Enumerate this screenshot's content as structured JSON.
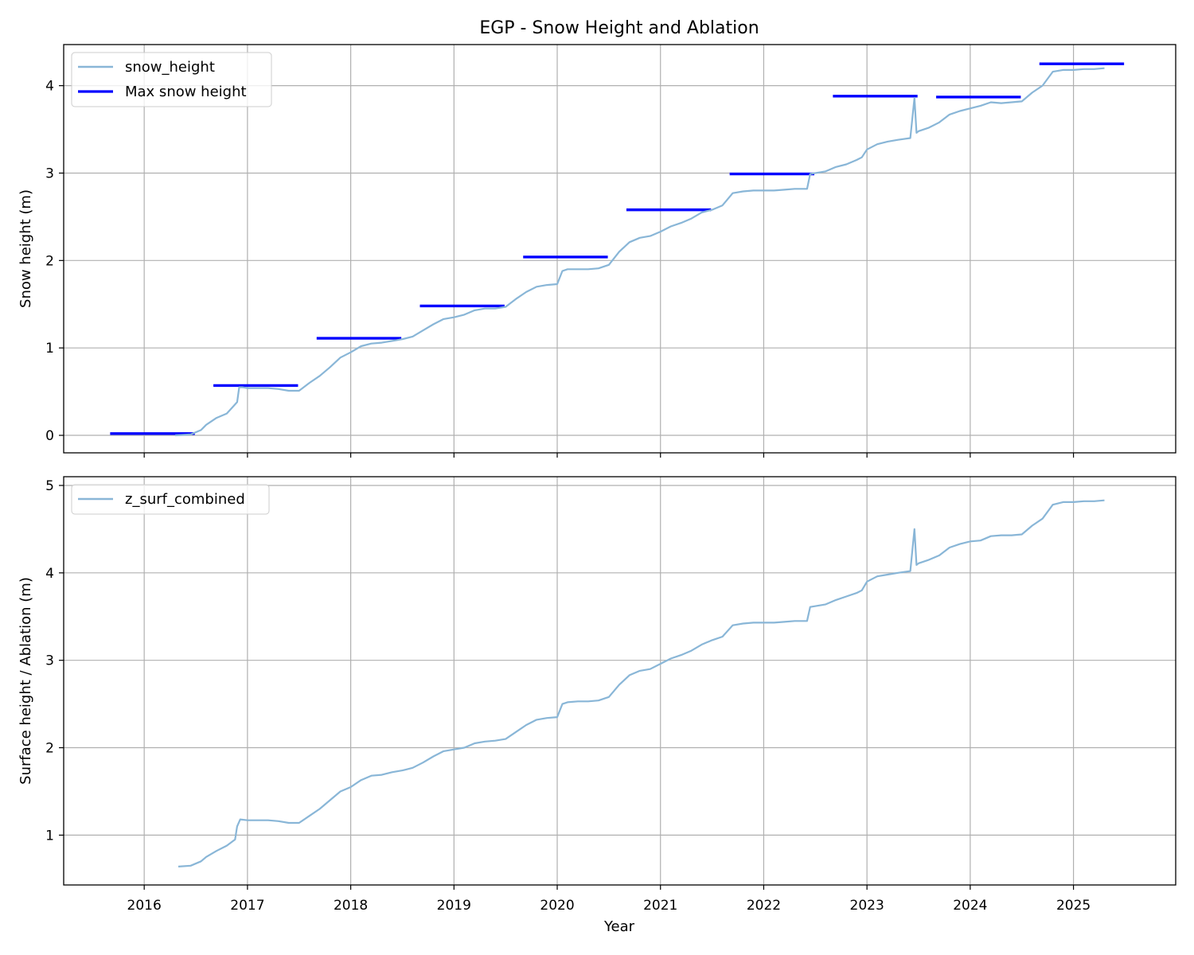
{
  "colors": {
    "series_line": "#89b6d7",
    "max_line": "#0000ff",
    "grid": "#b0b0b0",
    "frame": "#000000"
  },
  "chart_data": [
    {
      "type": "line",
      "title": "EGP - Snow Height and Ablation",
      "xlabel": "",
      "ylabel": "Snow height (m)",
      "xlim": [
        2015.22,
        2025.99
      ],
      "ylim": [
        -0.2,
        4.47
      ],
      "xticks": [
        "2016",
        "2017",
        "2018",
        "2019",
        "2020",
        "2021",
        "2022",
        "2023",
        "2024",
        "2025"
      ],
      "yticks": [
        0,
        1,
        2,
        3,
        4
      ],
      "grid": true,
      "legend_position": "top-left",
      "legend": [
        "snow_height",
        "Max snow height"
      ],
      "series": [
        {
          "name": "snow_height",
          "style": "line",
          "x": [
            2016.3,
            2016.45,
            2016.55,
            2016.6,
            2016.7,
            2016.8,
            2016.9,
            2016.92,
            2016.95,
            2017.0,
            2017.1,
            2017.2,
            2017.3,
            2017.4,
            2017.5,
            2017.6,
            2017.7,
            2017.8,
            2017.9,
            2018.0,
            2018.1,
            2018.2,
            2018.3,
            2018.4,
            2018.5,
            2018.6,
            2018.7,
            2018.8,
            2018.9,
            2019.0,
            2019.1,
            2019.2,
            2019.3,
            2019.4,
            2019.5,
            2019.6,
            2019.7,
            2019.8,
            2019.9,
            2020.0,
            2020.05,
            2020.1,
            2020.2,
            2020.3,
            2020.4,
            2020.5,
            2020.6,
            2020.7,
            2020.8,
            2020.9,
            2021.0,
            2021.1,
            2021.2,
            2021.3,
            2021.4,
            2021.5,
            2021.6,
            2021.7,
            2021.8,
            2021.9,
            2022.0,
            2022.1,
            2022.2,
            2022.3,
            2022.42,
            2022.45,
            2022.6,
            2022.7,
            2022.8,
            2022.9,
            2022.95,
            2023.0,
            2023.1,
            2023.2,
            2023.3,
            2023.42,
            2023.46,
            2023.48,
            2023.5,
            2023.6,
            2023.7,
            2023.8,
            2023.9,
            2024.0,
            2024.1,
            2024.2,
            2024.3,
            2024.4,
            2024.5,
            2024.6,
            2024.7,
            2024.8,
            2024.9,
            2025.0,
            2025.1,
            2025.2,
            2025.3
          ],
          "y": [
            0.0,
            0.01,
            0.06,
            0.12,
            0.2,
            0.25,
            0.38,
            0.55,
            0.55,
            0.54,
            0.54,
            0.54,
            0.53,
            0.51,
            0.51,
            0.6,
            0.68,
            0.78,
            0.89,
            0.95,
            1.02,
            1.05,
            1.06,
            1.08,
            1.1,
            1.13,
            1.2,
            1.27,
            1.33,
            1.35,
            1.38,
            1.43,
            1.45,
            1.45,
            1.47,
            1.56,
            1.64,
            1.7,
            1.72,
            1.73,
            1.88,
            1.9,
            1.9,
            1.9,
            1.91,
            1.95,
            2.1,
            2.21,
            2.26,
            2.28,
            2.33,
            2.39,
            2.43,
            2.48,
            2.55,
            2.58,
            2.63,
            2.77,
            2.79,
            2.8,
            2.8,
            2.8,
            2.81,
            2.82,
            2.82,
            2.99,
            3.02,
            3.07,
            3.1,
            3.15,
            3.18,
            3.27,
            3.33,
            3.36,
            3.38,
            3.4,
            3.86,
            3.46,
            3.48,
            3.52,
            3.58,
            3.67,
            3.71,
            3.74,
            3.77,
            3.81,
            3.8,
            3.81,
            3.82,
            3.92,
            4.0,
            4.16,
            4.18,
            4.18,
            4.19,
            4.19,
            4.2
          ]
        },
        {
          "name": "Max snow height",
          "style": "hsegments",
          "segments": [
            {
              "x0": 2015.67,
              "x1": 2016.49,
              "y": 0.02
            },
            {
              "x0": 2016.67,
              "x1": 2017.49,
              "y": 0.57
            },
            {
              "x0": 2017.67,
              "x1": 2018.49,
              "y": 1.11
            },
            {
              "x0": 2018.67,
              "x1": 2019.49,
              "y": 1.48
            },
            {
              "x0": 2019.67,
              "x1": 2020.49,
              "y": 2.04
            },
            {
              "x0": 2020.67,
              "x1": 2021.49,
              "y": 2.58
            },
            {
              "x0": 2021.67,
              "x1": 2022.49,
              "y": 2.99
            },
            {
              "x0": 2022.67,
              "x1": 2023.49,
              "y": 3.88
            },
            {
              "x0": 2023.67,
              "x1": 2024.49,
              "y": 3.87
            },
            {
              "x0": 2024.67,
              "x1": 2025.49,
              "y": 4.25
            }
          ]
        }
      ]
    },
    {
      "type": "line",
      "title": "",
      "xlabel": "Year",
      "ylabel": "Surface height / Ablation (m)",
      "xlim": [
        2015.22,
        2025.99
      ],
      "ylim": [
        0.43,
        5.1
      ],
      "xticks": [
        "2016",
        "2017",
        "2018",
        "2019",
        "2020",
        "2021",
        "2022",
        "2023",
        "2024",
        "2025"
      ],
      "yticks": [
        1,
        2,
        3,
        4,
        5
      ],
      "grid": true,
      "legend_position": "top-left",
      "legend": [
        "z_surf_combined"
      ],
      "series": [
        {
          "name": "z_surf_combined",
          "style": "line",
          "x": [
            2016.33,
            2016.45,
            2016.55,
            2016.6,
            2016.7,
            2016.8,
            2016.88,
            2016.9,
            2016.93,
            2017.0,
            2017.1,
            2017.2,
            2017.3,
            2017.4,
            2017.5,
            2017.6,
            2017.7,
            2017.8,
            2017.9,
            2018.0,
            2018.1,
            2018.2,
            2018.3,
            2018.4,
            2018.5,
            2018.6,
            2018.7,
            2018.8,
            2018.9,
            2019.0,
            2019.1,
            2019.2,
            2019.3,
            2019.4,
            2019.5,
            2019.6,
            2019.7,
            2019.8,
            2019.9,
            2020.0,
            2020.05,
            2020.1,
            2020.2,
            2020.3,
            2020.4,
            2020.5,
            2020.6,
            2020.7,
            2020.8,
            2020.9,
            2021.0,
            2021.1,
            2021.2,
            2021.3,
            2021.4,
            2021.5,
            2021.6,
            2021.7,
            2021.8,
            2021.9,
            2022.0,
            2022.1,
            2022.2,
            2022.3,
            2022.42,
            2022.45,
            2022.6,
            2022.7,
            2022.8,
            2022.9,
            2022.95,
            2023.0,
            2023.1,
            2023.2,
            2023.3,
            2023.42,
            2023.46,
            2023.48,
            2023.5,
            2023.6,
            2023.7,
            2023.8,
            2023.9,
            2024.0,
            2024.1,
            2024.2,
            2024.3,
            2024.4,
            2024.5,
            2024.6,
            2024.7,
            2024.8,
            2024.9,
            2025.0,
            2025.1,
            2025.2,
            2025.3
          ],
          "y": [
            0.64,
            0.65,
            0.7,
            0.75,
            0.82,
            0.88,
            0.95,
            1.1,
            1.18,
            1.17,
            1.17,
            1.17,
            1.16,
            1.14,
            1.14,
            1.22,
            1.3,
            1.4,
            1.5,
            1.55,
            1.63,
            1.68,
            1.69,
            1.72,
            1.74,
            1.77,
            1.83,
            1.9,
            1.96,
            1.98,
            2.0,
            2.05,
            2.07,
            2.08,
            2.1,
            2.18,
            2.26,
            2.32,
            2.34,
            2.35,
            2.5,
            2.52,
            2.53,
            2.53,
            2.54,
            2.58,
            2.72,
            2.83,
            2.88,
            2.9,
            2.96,
            3.02,
            3.06,
            3.11,
            3.18,
            3.23,
            3.27,
            3.4,
            3.42,
            3.43,
            3.43,
            3.43,
            3.44,
            3.45,
            3.45,
            3.61,
            3.64,
            3.69,
            3.73,
            3.77,
            3.8,
            3.9,
            3.96,
            3.98,
            4.0,
            4.02,
            4.5,
            4.09,
            4.11,
            4.15,
            4.2,
            4.29,
            4.33,
            4.36,
            4.37,
            4.42,
            4.43,
            4.43,
            4.44,
            4.54,
            4.62,
            4.78,
            4.81,
            4.81,
            4.82,
            4.82,
            4.83
          ]
        }
      ]
    }
  ]
}
